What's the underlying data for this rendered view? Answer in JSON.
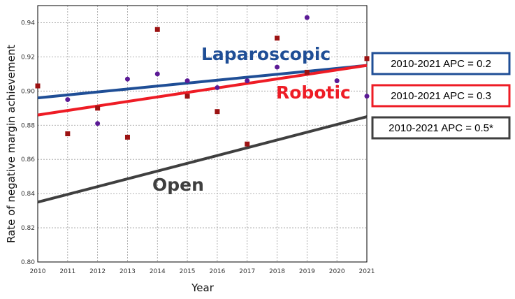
{
  "chart_data": {
    "type": "scatter",
    "xlabel": "Year",
    "ylabel": "Rate of negative margin achievement",
    "xlim": [
      2010,
      2021
    ],
    "ylim": [
      0.8,
      0.95
    ],
    "x_ticks": [
      "2010",
      "2011",
      "2012",
      "2013",
      "2014",
      "2015",
      "2016",
      "2017",
      "2018",
      "2019",
      "2020",
      "2021"
    ],
    "y_ticks": [
      "0.80",
      "0.82",
      "0.84",
      "0.86",
      "0.88",
      "0.90",
      "0.92",
      "0.94"
    ],
    "grid": true,
    "trend_lines": [
      {
        "name": "Laparoscopic",
        "label": "Laparoscopic",
        "color": "#1f4e96",
        "start": [
          2010,
          0.896
        ],
        "end": [
          2021,
          0.915
        ],
        "apc_label": "2010-2021 APC = 0.2"
      },
      {
        "name": "Robotic",
        "label": "Robotic",
        "color": "#ee1c25",
        "start": [
          2010,
          0.886
        ],
        "end": [
          2021,
          0.915
        ],
        "apc_label": "2010-2021 APC = 0.3"
      },
      {
        "name": "Open",
        "label": "Open",
        "color": "#3f3f3f",
        "start": [
          2010,
          0.835
        ],
        "end": [
          2021,
          0.885
        ],
        "apc_label": "2010-2021 APC = 0.5*"
      }
    ],
    "series": [
      {
        "name": "Laparoscopic (observed)",
        "marker": "circle",
        "color": "#5b1a96",
        "x": [
          2010,
          2011,
          2012,
          2013,
          2014,
          2015,
          2016,
          2017,
          2018,
          2019,
          2020,
          2021
        ],
        "y": [
          0.903,
          0.895,
          0.881,
          0.907,
          0.91,
          0.906,
          0.902,
          0.906,
          0.914,
          0.943,
          0.906,
          0.897
        ]
      },
      {
        "name": "Robotic (observed)",
        "marker": "square",
        "color": "#9c1212",
        "x": [
          2010,
          2011,
          2012,
          2013,
          2014,
          2015,
          2016,
          2017,
          2018,
          2019,
          2021
        ],
        "y": [
          0.903,
          0.875,
          0.89,
          0.873,
          0.936,
          0.897,
          0.888,
          0.869,
          0.931,
          0.911,
          0.919
        ]
      }
    ]
  }
}
